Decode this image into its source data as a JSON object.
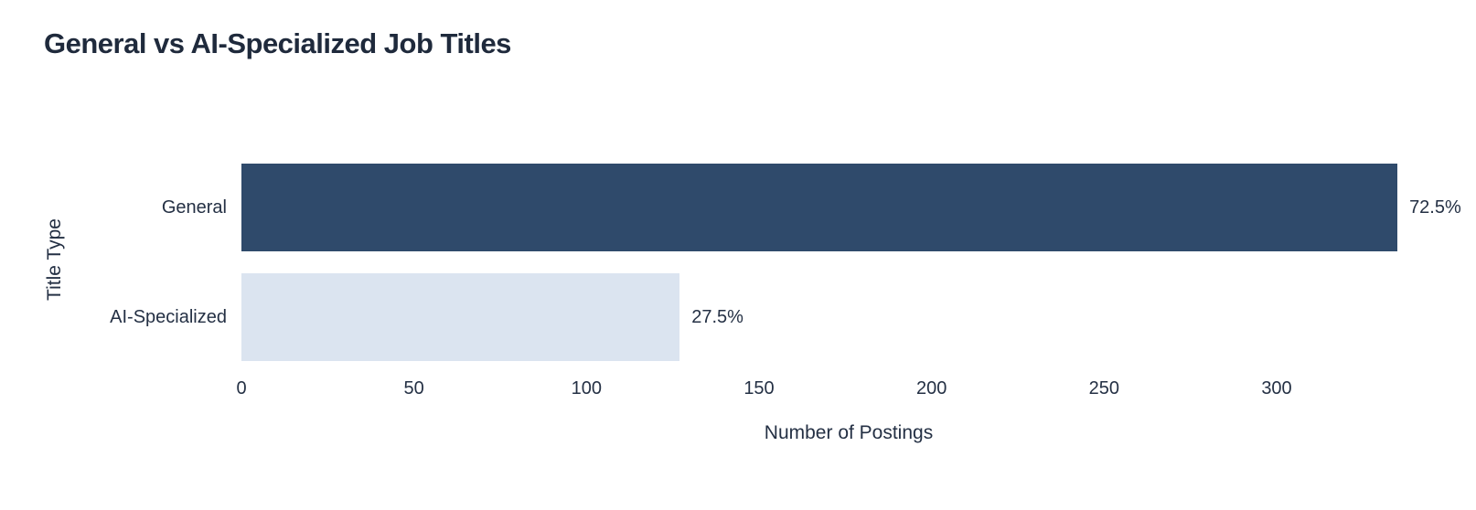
{
  "chart": {
    "title": "General vs AI-Specialized Job Titles",
    "xlabel": "Number of Postings",
    "ylabel": "Title Type"
  },
  "chart_data": {
    "type": "bar",
    "orientation": "horizontal",
    "title": "General vs AI-Specialized Job Titles",
    "xlabel": "Number of Postings",
    "ylabel": "Title Type",
    "categories": [
      "General",
      "AI-Specialized"
    ],
    "values": [
      335,
      127
    ],
    "bar_labels": [
      "72.5%",
      "27.5%"
    ],
    "xticks": [
      0,
      50,
      100,
      150,
      200,
      250,
      300
    ],
    "xlim": [
      0,
      353
    ],
    "grid": false,
    "legend": false,
    "colors": {
      "bar_general": "#2f4a6b",
      "bar_ai_specialized": "#dbe4f0",
      "text": "#243044",
      "title_text": "#1f2a3c",
      "background": "#ffffff"
    }
  }
}
